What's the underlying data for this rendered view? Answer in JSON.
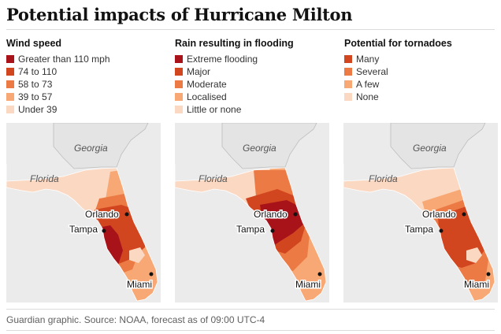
{
  "title": "Potential impacts of Hurricane Milton",
  "panels": [
    {
      "legend_title": "Wind speed",
      "items": [
        {
          "label": "Greater than 110 mph",
          "color": "#a8131a"
        },
        {
          "label": "74 to 110",
          "color": "#d2461f"
        },
        {
          "label": "58 to 73",
          "color": "#ec7a45"
        },
        {
          "label": "39 to 57",
          "color": "#f7a874"
        },
        {
          "label": "Under 39",
          "color": "#fbd8c2"
        }
      ]
    },
    {
      "legend_title": "Rain resulting in flooding",
      "items": [
        {
          "label": "Extreme flooding",
          "color": "#a8131a"
        },
        {
          "label": "Major",
          "color": "#d2461f"
        },
        {
          "label": "Moderate",
          "color": "#ec7a45"
        },
        {
          "label": "Localised",
          "color": "#f7a874"
        },
        {
          "label": "Little or none",
          "color": "#fbd8c2"
        }
      ]
    },
    {
      "legend_title": "Potential for tornadoes",
      "items": [
        {
          "label": "Many",
          "color": "#d2461f"
        },
        {
          "label": "Several",
          "color": "#ec7a45"
        },
        {
          "label": "A few",
          "color": "#f7a874"
        },
        {
          "label": "None",
          "color": "#fbd8c2"
        }
      ]
    }
  ],
  "map_labels": {
    "georgia": "Georgia",
    "florida": "Florida",
    "orlando": "Orlando",
    "tampa": "Tampa",
    "miami": "Miami"
  },
  "footer": "Guardian graphic. Source: NOAA, forecast as of 09:00 UTC-4"
}
